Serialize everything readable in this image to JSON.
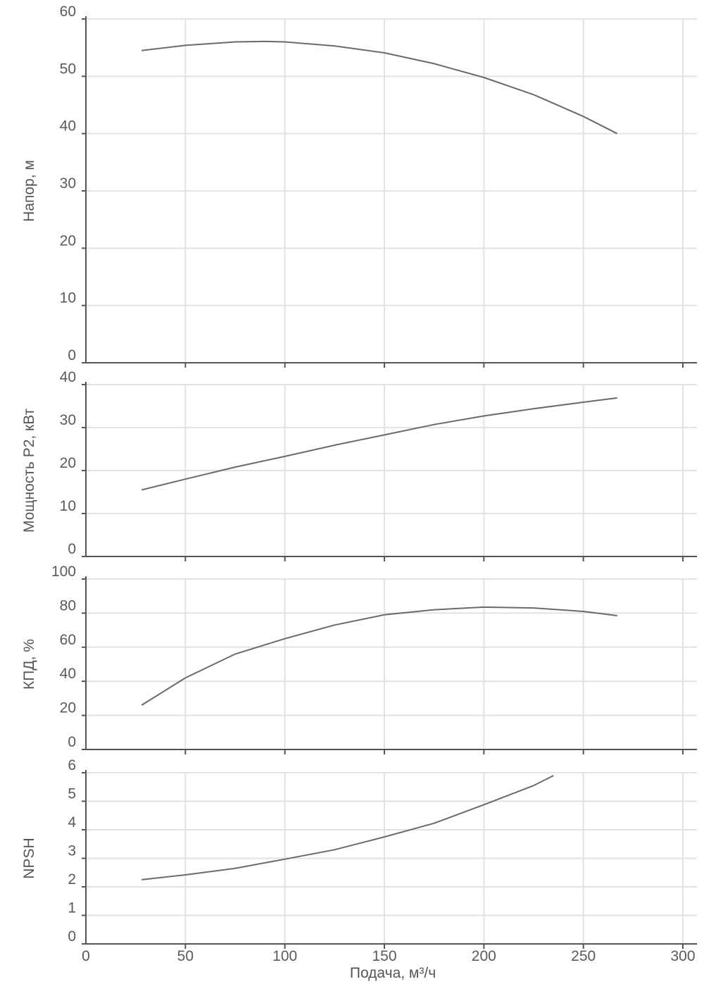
{
  "chart_data": [
    {
      "type": "line",
      "ylabel": "Напор, м",
      "ylim": [
        0,
        60
      ],
      "yticks": [
        0,
        10,
        20,
        30,
        40,
        50,
        60
      ],
      "xlim": [
        0,
        300
      ],
      "xticks": [
        0,
        50,
        100,
        150,
        200,
        250,
        300
      ],
      "grid": true,
      "series": [
        {
          "x": [
            28,
            50,
            75,
            90,
            100,
            125,
            150,
            175,
            200,
            225,
            250,
            267
          ],
          "y": [
            54.5,
            55.4,
            56.0,
            56.1,
            56.0,
            55.3,
            54.1,
            52.2,
            49.8,
            46.8,
            43.0,
            40.0
          ]
        }
      ]
    },
    {
      "type": "line",
      "ylabel": "Мощность Р2, кВт",
      "ylim": [
        0,
        40
      ],
      "yticks": [
        0,
        10,
        20,
        30,
        40
      ],
      "xlim": [
        0,
        300
      ],
      "xticks": [
        0,
        50,
        100,
        150,
        200,
        250,
        300
      ],
      "grid": true,
      "series": [
        {
          "x": [
            28,
            50,
            75,
            100,
            125,
            150,
            175,
            200,
            225,
            250,
            267
          ],
          "y": [
            15.5,
            18.0,
            20.8,
            23.3,
            25.9,
            28.3,
            30.7,
            32.7,
            34.4,
            35.9,
            36.9
          ]
        }
      ]
    },
    {
      "type": "line",
      "ylabel": "КПД, %",
      "ylim": [
        0,
        100
      ],
      "yticks": [
        0,
        20,
        40,
        60,
        80,
        100
      ],
      "xlim": [
        0,
        300
      ],
      "xticks": [
        0,
        50,
        100,
        150,
        200,
        250,
        300
      ],
      "grid": true,
      "series": [
        {
          "x": [
            28,
            50,
            75,
            100,
            125,
            150,
            175,
            200,
            225,
            250,
            267
          ],
          "y": [
            26,
            42,
            56,
            65,
            73,
            79,
            82,
            83.5,
            83,
            81,
            78.5
          ]
        }
      ]
    },
    {
      "type": "line",
      "ylabel": "NPSH",
      "ylim": [
        0,
        6
      ],
      "yticks": [
        0,
        1,
        2,
        3,
        4,
        5,
        6
      ],
      "xlim": [
        0,
        300
      ],
      "xticks": [
        0,
        50,
        100,
        150,
        200,
        250,
        300
      ],
      "xlabel": "Подача, м³/ч",
      "grid": true,
      "series": [
        {
          "x": [
            28,
            50,
            75,
            100,
            125,
            150,
            175,
            200,
            225,
            235
          ],
          "y": [
            2.25,
            2.42,
            2.65,
            2.97,
            3.3,
            3.75,
            4.23,
            4.88,
            5.55,
            5.9
          ]
        }
      ]
    }
  ]
}
